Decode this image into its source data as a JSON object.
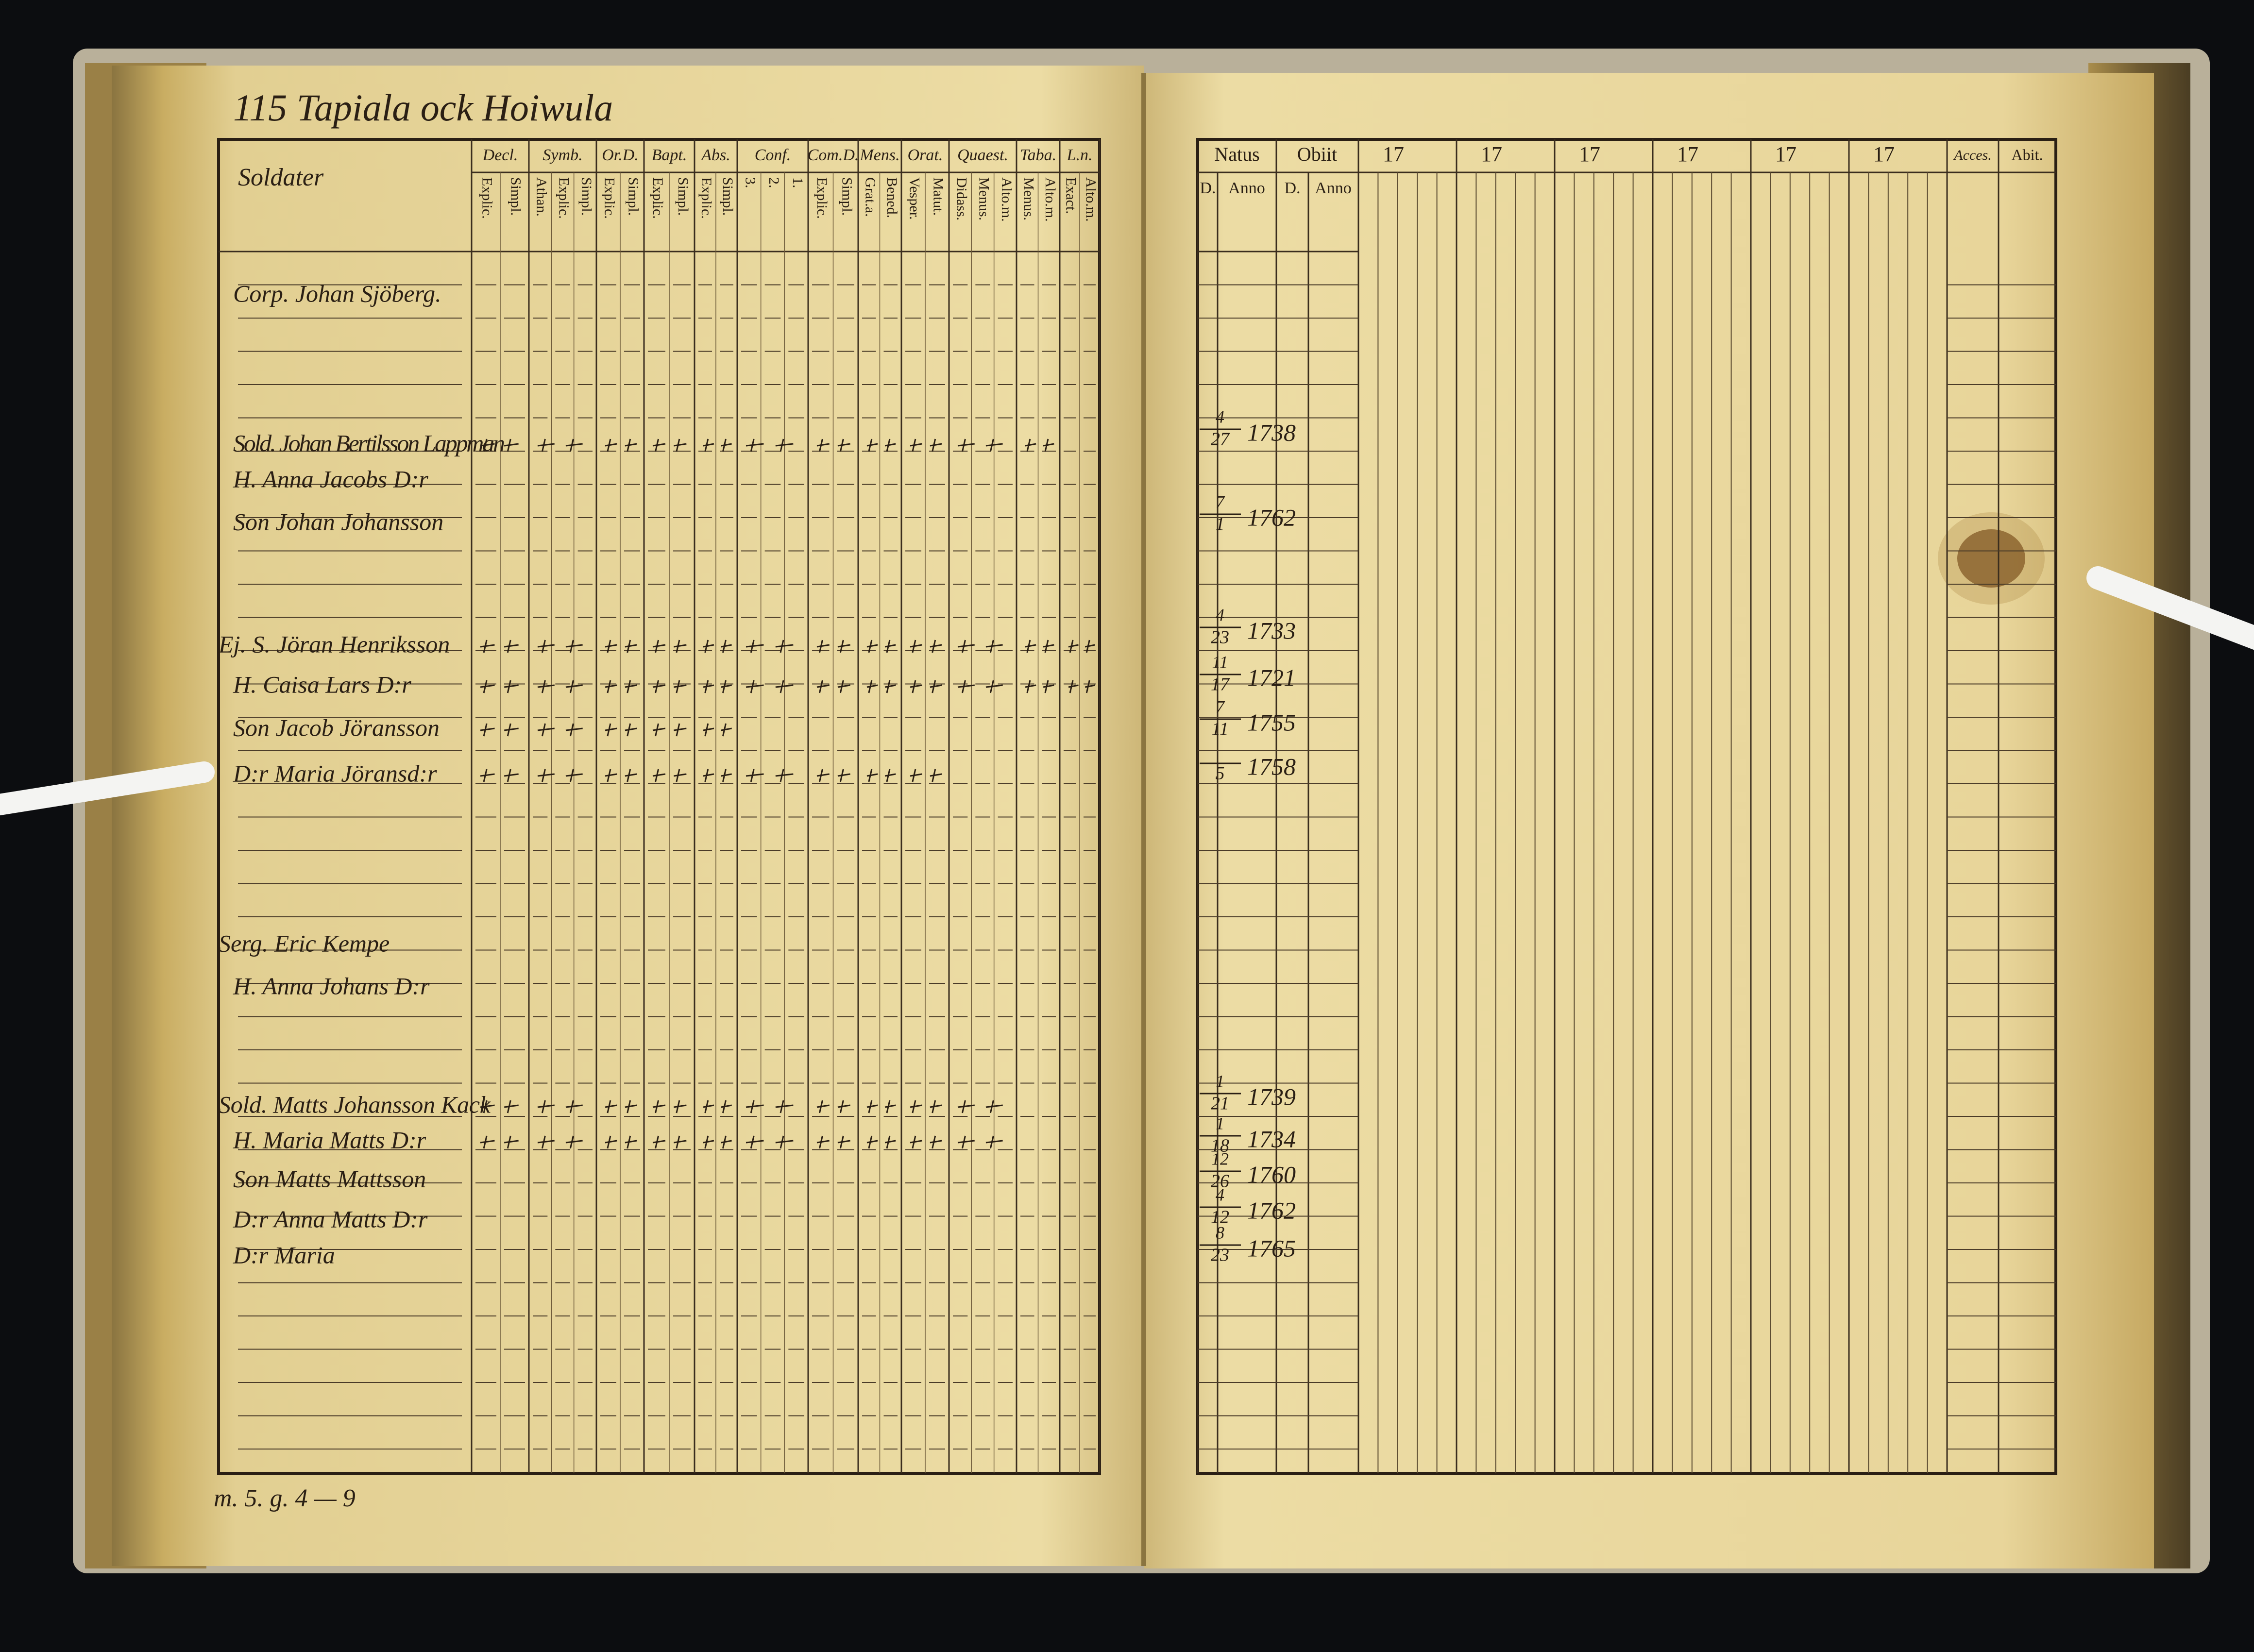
{
  "left_page": {
    "heading": "115 Tapiala ock Hoiwula",
    "table": {
      "name_header": "Soldater",
      "headers": [
        "Decl.",
        "Symb.",
        "Or.D.",
        "Bapt.",
        "Abs.",
        "Conf.",
        "Com.D.",
        "Mens.",
        "Orat.",
        "Quaest.",
        "Taba.",
        "L.n."
      ],
      "subheaders": [
        [
          "Explic.",
          "Simpl."
        ],
        [
          "Athan.",
          "Explic.",
          "Simpl."
        ],
        [
          "Explic.",
          "Simpl."
        ],
        [
          "Explic.",
          "Simpl."
        ],
        [
          "Explic.",
          "Simpl."
        ],
        [
          "3.",
          "2.",
          "1."
        ],
        [
          "Explic.",
          "Simpl."
        ],
        [
          "Grat.a.",
          "Bened."
        ],
        [
          "Vesper.",
          "Matut."
        ],
        [
          "Didass.",
          "Menus.",
          "Alto.m."
        ],
        [
          "Menus.",
          "Alto.m."
        ],
        [
          "Exact.",
          "Alto.m."
        ]
      ],
      "entries": [
        "Corp. Johan Sjöberg.",
        "Sold. Johan Bertilsson Lappman",
        "H. Anna Jacobs D:r",
        "Son Johan Johansson",
        "Ej. S. Jöran Henriksson",
        "H. Caisa Lars D:r",
        "Son Jacob Jöransson",
        "D:r Maria Jöransd:r",
        "Serg. Eric Kempe",
        "H. Anna Johans D:r",
        "Sold. Matts Johansson Kack",
        "H. Maria Matts D:r",
        "Son Matts Mattsson",
        "D:r Anna Matts D:r",
        "D:r Maria"
      ]
    },
    "footer": "m. 5. g. 4 — 9"
  },
  "right_page": {
    "table": {
      "natus": "Natus",
      "obiit": "Obiit",
      "years": [
        "17",
        "17",
        "17",
        "17",
        "17",
        "17"
      ],
      "accessit": "Acces.",
      "abit": "Abit.",
      "subheaders": [
        "D.",
        "Anno",
        "D.",
        "Anno"
      ],
      "births": [
        {
          "month": "4",
          "day": "27",
          "year": "1738"
        },
        {
          "month": "7",
          "day": "1",
          "year": "1762"
        },
        {
          "month": "4",
          "day": "23",
          "year": "1733"
        },
        {
          "month": "11",
          "day": "17",
          "year": "1721"
        },
        {
          "month": "7",
          "day": "11",
          "year": "1755"
        },
        {
          "month": "",
          "day": "5",
          "year": "1758"
        },
        {
          "month": "1",
          "day": "21",
          "year": "1739"
        },
        {
          "month": "1",
          "day": "18",
          "year": "1734"
        },
        {
          "month": "12",
          "day": "26",
          "year": "1760"
        },
        {
          "month": "4",
          "day": "12",
          "year": "1762"
        },
        {
          "month": "8",
          "day": "23",
          "year": "1765"
        }
      ]
    }
  }
}
